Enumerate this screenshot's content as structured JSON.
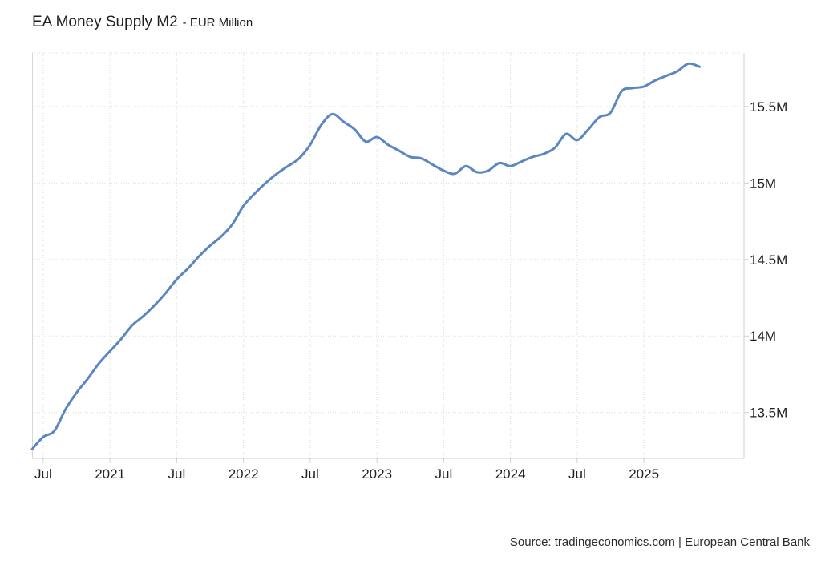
{
  "chart_data": {
    "type": "line",
    "title": "EA Money Supply M2",
    "subtitle": "- EUR Million",
    "source": "Source: tradingeconomics.com | European Central Bank",
    "xlabel": "",
    "ylabel": "",
    "ylim": [
      13.2,
      15.85
    ],
    "y_ticks": [
      13.5,
      14,
      14.5,
      15,
      15.5
    ],
    "y_tick_labels": [
      "13.5M",
      "14M",
      "14.5M",
      "15M",
      "15.5M"
    ],
    "x_ticks": [
      "2020-07",
      "2021-01",
      "2021-07",
      "2022-01",
      "2022-07",
      "2023-01",
      "2023-07",
      "2024-01",
      "2024-07",
      "2025-01"
    ],
    "x_tick_labels": [
      "Jul",
      "2021",
      "Jul",
      "2022",
      "Jul",
      "2023",
      "Jul",
      "2024",
      "Jul",
      "2025"
    ],
    "xlim": [
      "2020-06",
      "2025-10"
    ],
    "grid": true,
    "line_color": "#5b87c1",
    "series": [
      {
        "name": "",
        "x": [
          "2020-06",
          "2020-07",
          "2020-08",
          "2020-09",
          "2020-10",
          "2020-11",
          "2020-12",
          "2021-01",
          "2021-02",
          "2021-03",
          "2021-04",
          "2021-05",
          "2021-06",
          "2021-07",
          "2021-08",
          "2021-09",
          "2021-10",
          "2021-11",
          "2021-12",
          "2022-01",
          "2022-02",
          "2022-03",
          "2022-04",
          "2022-05",
          "2022-06",
          "2022-07",
          "2022-08",
          "2022-09",
          "2022-10",
          "2022-11",
          "2022-12",
          "2023-01",
          "2023-02",
          "2023-03",
          "2023-04",
          "2023-05",
          "2023-06",
          "2023-07",
          "2023-08",
          "2023-09",
          "2023-10",
          "2023-11",
          "2023-12",
          "2024-01",
          "2024-02",
          "2024-03",
          "2024-04",
          "2024-05",
          "2024-06",
          "2024-07",
          "2024-08",
          "2024-09",
          "2024-10",
          "2024-11",
          "2024-12",
          "2025-01",
          "2025-02",
          "2025-03",
          "2025-04",
          "2025-05",
          "2025-06"
        ],
        "values": [
          13.26,
          13.34,
          13.38,
          13.52,
          13.63,
          13.72,
          13.82,
          13.9,
          13.98,
          14.07,
          14.13,
          14.2,
          14.28,
          14.37,
          14.44,
          14.52,
          14.59,
          14.65,
          14.73,
          14.85,
          14.93,
          15.0,
          15.06,
          15.11,
          15.16,
          15.25,
          15.38,
          15.45,
          15.4,
          15.35,
          15.27,
          15.3,
          15.25,
          15.21,
          15.17,
          15.16,
          15.12,
          15.08,
          15.06,
          15.11,
          15.07,
          15.08,
          15.13,
          15.11,
          15.14,
          15.17,
          15.19,
          15.23,
          15.32,
          15.28,
          15.35,
          15.43,
          15.46,
          15.6,
          15.62,
          15.63,
          15.67,
          15.7,
          15.73,
          15.78,
          15.76
        ]
      }
    ]
  }
}
